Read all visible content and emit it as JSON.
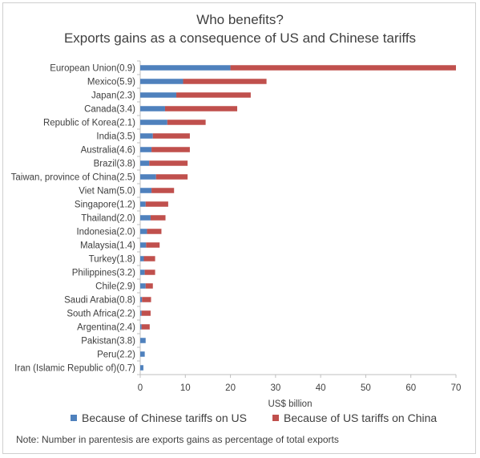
{
  "chart_data": {
    "type": "bar",
    "orientation": "horizontal",
    "stacked": true,
    "title": "Who benefits?",
    "subtitle": "Exports gains as a consequence of US and Chinese tariffs",
    "xlabel": "US$ billion",
    "ylabel": "",
    "xlim": [
      0,
      70
    ],
    "xticks": [
      "0",
      "10",
      "20",
      "30",
      "40",
      "50",
      "60",
      "70"
    ],
    "grid": false,
    "legend_position": "bottom",
    "categories": [
      "European Union(0.9)",
      "Mexico(5.9)",
      "Japan(2.3)",
      "Canada(3.4)",
      "Republic of Korea(2.1)",
      "India(3.5)",
      "Australia(4.6)",
      "Brazil(3.8)",
      "Taiwan, province of China(2.5)",
      "Viet Nam(5.0)",
      "Singapore(1.2)",
      "Thailand(2.0)",
      "Indonesia(2.0)",
      "Malaysia(1.4)",
      "Turkey(1.8)",
      "Philippines(3.2)",
      "Chile(2.9)",
      "Saudi Arabia(0.8)",
      "South Africa(2.2)",
      "Argentina(2.4)",
      "Pakistan(3.8)",
      "Peru(2.2)",
      "Iran (Islamic Republic of)(0.7)"
    ],
    "series": [
      {
        "name": "Because of Chinese tariffs on US",
        "color": "#4f81bd",
        "values": [
          20,
          9.5,
          8,
          5.5,
          6,
          2.8,
          2.5,
          2,
          3.5,
          2.5,
          1.2,
          2.3,
          1.5,
          1.3,
          0.8,
          1,
          1.2,
          0.4,
          0.3,
          0.3,
          1.2,
          1,
          0.7
        ]
      },
      {
        "name": "Because of US tariffs on China",
        "color": "#c0504d",
        "values": [
          50,
          18.5,
          16.5,
          16,
          8.5,
          8.2,
          8.5,
          8.5,
          7,
          5,
          5,
          3.3,
          3.2,
          3,
          2.5,
          2.3,
          1.6,
          2,
          2,
          1.8,
          0,
          0,
          0
        ]
      }
    ],
    "note": "Note: Number in parentesis are exports gains as percentage of total exports"
  }
}
